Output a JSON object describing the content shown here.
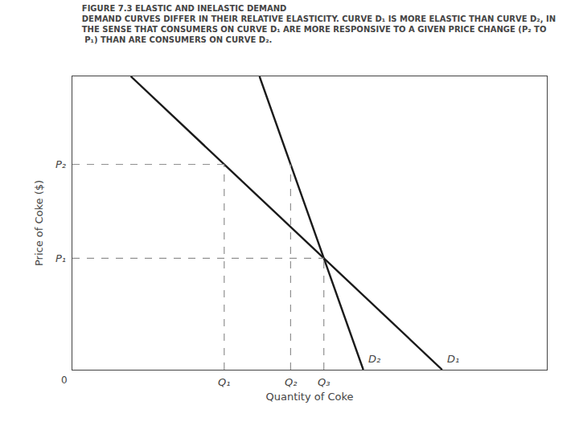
{
  "chart_data": {
    "type": "line",
    "title": "FIGURE 7.3 ELASTIC AND INELASTIC DEMAND\nDEMAND CURVES DIFFER IN THEIR RELATIVE ELASTICITY. CURVE D₁ IS MORE ELASTIC THAN CURVE D₂, IN\nTHE SENSE THAT CONSUMERS ON CURVE D₁ ARE MORE RESPONSIVE TO A GIVEN PRICE CHANGE (P₂ TO\n P₁) THAN ARE CONSUMERS ON CURVE D₂.",
    "xlabel": "Quantity of Coke",
    "ylabel": "Price of Coke ($)",
    "xlim": [
      0,
      10
    ],
    "ylim": [
      0,
      10
    ],
    "xticks": [],
    "yticks": [],
    "tick_labels": false,
    "grid": false,
    "series": [
      {
        "name": "D₁",
        "x": [
          1.23125,
          7.79375
        ],
        "values": [
          10,
          0
        ],
        "color": "#1a1a1a",
        "line_style": "solid"
      },
      {
        "name": "D₂",
        "x": [
          3.94375,
          6.13125
        ],
        "values": [
          10,
          0
        ],
        "color": "#1a1a1a",
        "line_style": "solid"
      },
      {
        "x": [
          0,
          3.2
        ],
        "values": [
          7.0,
          7.0
        ],
        "color": "#909090",
        "line_style": "dashed"
      },
      {
        "x": [
          3.2,
          3.2
        ],
        "values": [
          0,
          7.0
        ],
        "color": "#909090",
        "line_style": "dashed"
      },
      {
        "x": [
          4.6,
          4.6
        ],
        "values": [
          0,
          7.0
        ],
        "color": "#909090",
        "line_style": "dashed"
      },
      {
        "x": [
          0,
          5.3
        ],
        "values": [
          3.8,
          3.8
        ],
        "color": "#909090",
        "line_style": "dashed"
      },
      {
        "x": [
          5.3,
          5.3
        ],
        "values": [
          0,
          3.8
        ],
        "color": "#909090",
        "line_style": "dashed"
      }
    ],
    "annotations": [
      {
        "text": "P₂",
        "y": 7.0
      },
      {
        "text": "P₁",
        "y": 3.8
      },
      {
        "text": "Q₁",
        "x": 3.2
      },
      {
        "text": "Q₂",
        "x": 4.6
      },
      {
        "text": "Q₃",
        "x": 5.3
      },
      {
        "text": "0",
        "x": 0,
        "y": 0
      }
    ]
  }
}
